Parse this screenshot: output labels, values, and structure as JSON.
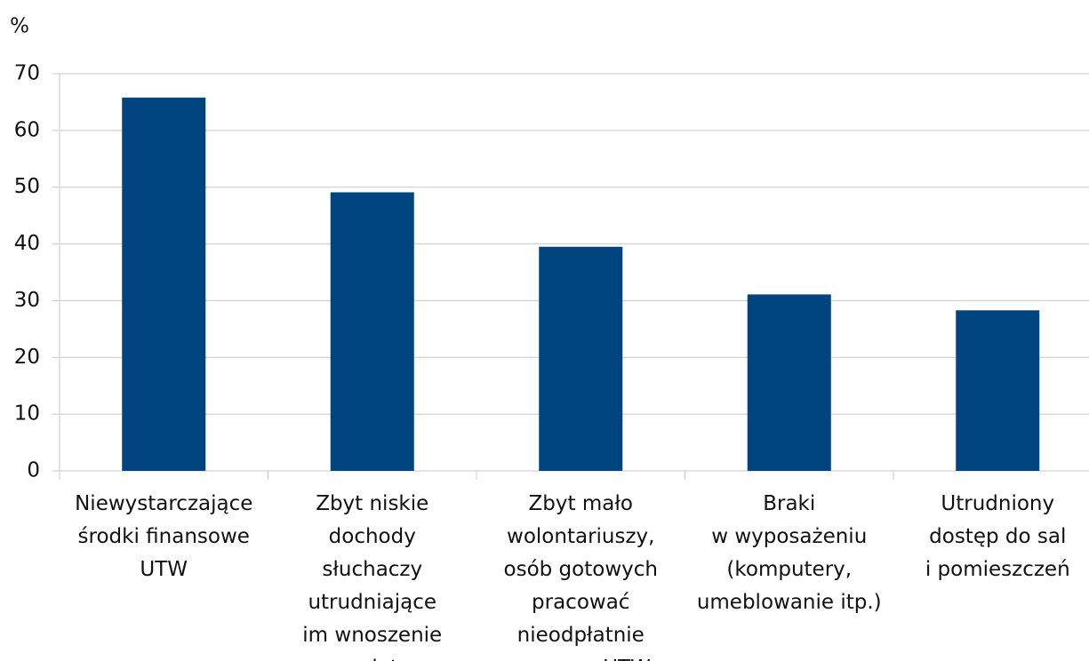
{
  "chart_data": {
    "type": "bar",
    "y_label": "%",
    "categories": [
      [
        "Niewystarczające",
        "środki finansowe",
        "UTW"
      ],
      [
        "Zbyt niskie",
        "dochody",
        "słuchaczy",
        "utrudniające",
        "im wnoszenie",
        "opłat"
      ],
      [
        "Zbyt mało",
        "wolontariuszy,",
        "osób gotowych",
        "pracować",
        "nieodpłatnie",
        "na rzecz UTW"
      ],
      [
        "Braki",
        "w wyposażeniu",
        "(komputery,",
        "umeblowanie itp.)"
      ],
      [
        "Utrudniony",
        "dostęp do sal",
        "i pomieszczeń"
      ]
    ],
    "values": [
      65.8,
      49.1,
      39.5,
      31.1,
      28.3
    ],
    "color": "#004480",
    "ylim": [
      0,
      70
    ],
    "yticks": [
      0,
      10,
      20,
      30,
      40,
      50,
      60,
      70
    ],
    "grid": true
  }
}
